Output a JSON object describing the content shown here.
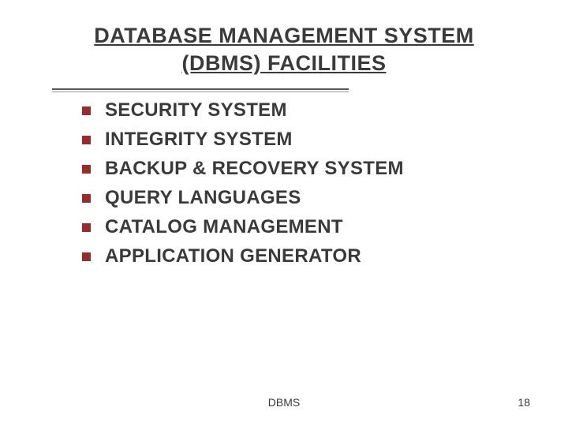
{
  "title": {
    "line1": "DATABASE MANAGEMENT SYSTEM",
    "line2": "(DBMS) FACILITIES"
  },
  "bullets": [
    "SECURITY SYSTEM",
    "INTEGRITY SYSTEM",
    "BACKUP & RECOVERY SYSTEM",
    "QUERY LANGUAGES",
    "CATALOG MANAGEMENT",
    "APPLICATION GENERATOR"
  ],
  "footer": {
    "label": "DBMS",
    "page": "18"
  },
  "style": {
    "bullet_color": "#982b2b",
    "text_color": "#3a3a3a",
    "background_color": "#ffffff",
    "title_fontsize": 27,
    "bullet_fontsize": 24,
    "footer_fontsize": 14
  }
}
